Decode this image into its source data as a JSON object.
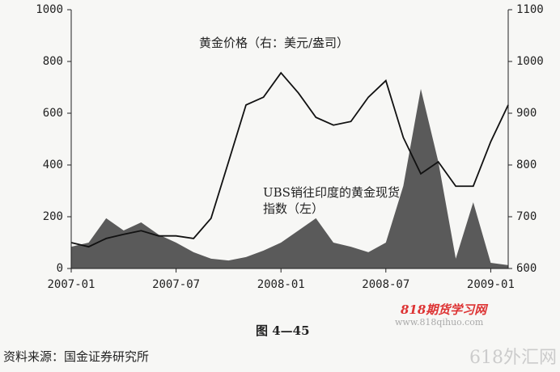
{
  "chart_data": {
    "type": "line-area-dual",
    "x": [
      "2007-01",
      "2007-02",
      "2007-03",
      "2007-04",
      "2007-05",
      "2007-06",
      "2007-07",
      "2007-08",
      "2007-09",
      "2007-10",
      "2007-11",
      "2007-12",
      "2008-01",
      "2008-02",
      "2008-03",
      "2008-04",
      "2008-05",
      "2008-06",
      "2008-07",
      "2008-08",
      "2008-09",
      "2008-10",
      "2008-11",
      "2008-12",
      "2009-01",
      "2009-02"
    ],
    "xticks": [
      "2007-01",
      "2007-07",
      "2008-01",
      "2008-07",
      "2009-01"
    ],
    "ylim": [
      0,
      1000
    ],
    "yticks": [
      0,
      200,
      400,
      600,
      800,
      1000
    ],
    "y2lim": [
      600,
      1100
    ],
    "y2ticks": [
      600,
      700,
      800,
      900,
      1000,
      1100
    ],
    "series": [
      {
        "name": "UBS销往印度的黄金现货指数（左）",
        "kind": "area",
        "color": "#5a5a5a",
        "values": [
          84,
          100,
          194,
          147,
          178,
          131,
          100,
          63,
          38,
          31,
          44,
          69,
          100,
          147,
          194,
          100,
          84,
          63,
          100,
          319,
          694,
          413,
          38,
          256,
          22,
          13
        ]
      },
      {
        "name": "黄金价格（右：美元/盎司）",
        "kind": "line",
        "axis": "y2",
        "color": "#111111",
        "values": [
          650,
          642,
          658,
          666,
          673,
          663,
          663,
          658,
          697,
          806,
          916,
          931,
          978,
          939,
          892,
          877,
          884,
          931,
          963,
          853,
          783,
          806,
          759,
          759,
          845,
          916
        ]
      }
    ]
  },
  "figure_caption": "图 4—45",
  "source": "资料来源：国金证券研究所",
  "watermarks": [
    "818期货学习网",
    "www.818qihuo.com",
    "618外汇网"
  ]
}
